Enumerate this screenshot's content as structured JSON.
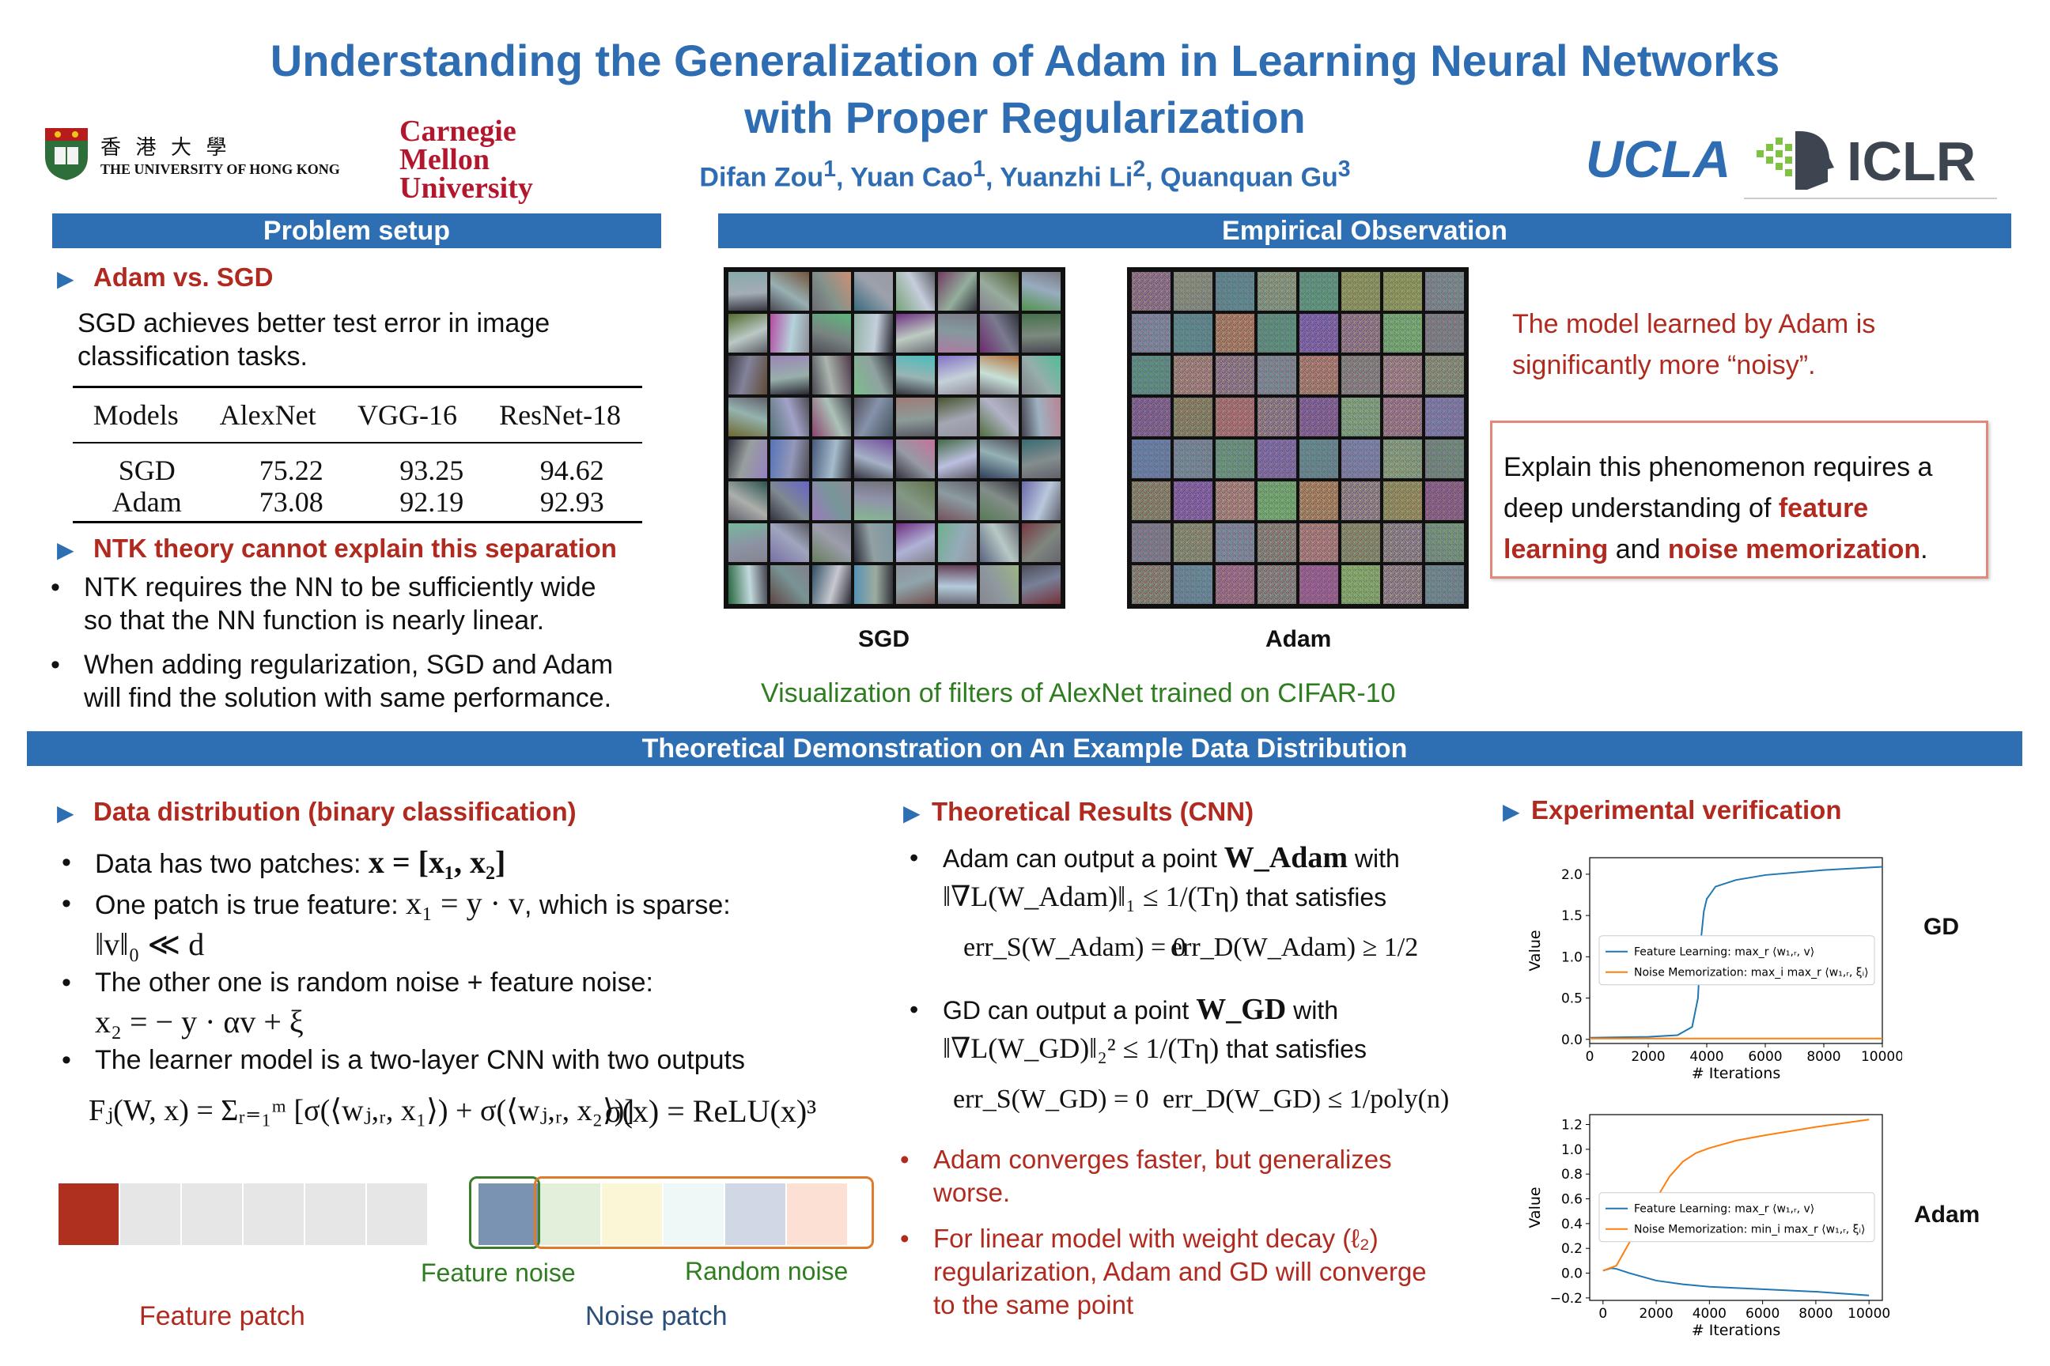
{
  "header": {
    "title_line1": "Understanding the Generalization of Adam in Learning Neural Networks",
    "title_line2": "with Proper Regularization",
    "authors": [
      {
        "name": "Difan Zou",
        "sup": "1"
      },
      {
        "name": "Yuan Cao",
        "sup": "1"
      },
      {
        "name": "Yuanzhi Li",
        "sup": "2"
      },
      {
        "name": "Quanquan Gu",
        "sup": "3"
      }
    ],
    "logos": {
      "hku_cn": "香 港 大 學",
      "hku_en": "THE UNIVERSITY OF HONG KONG",
      "cmu1": "Carnegie",
      "cmu2": "Mellon",
      "cmu3": "University",
      "ucla": "UCLA",
      "iclr": "ICLR"
    }
  },
  "problem": {
    "bar": "Problem setup",
    "h_adam_sgd": "Adam vs. SGD",
    "sgd_text_1": "SGD achieves better test error in image",
    "sgd_text_2": "classification tasks.",
    "table": {
      "headers": [
        "Models",
        "AlexNet",
        "VGG-16",
        "ResNet-18"
      ],
      "rows": [
        [
          "SGD",
          "75.22",
          "93.25",
          "94.62"
        ],
        [
          "Adam",
          "73.08",
          "92.19",
          "92.93"
        ]
      ]
    },
    "h_ntk": "NTK theory cannot explain this separation",
    "b1_1": "NTK requires the NN to be sufficiently wide",
    "b1_2": "so that the NN function is nearly linear.",
    "b2_1": "When adding regularization, SGD and Adam",
    "b2_2": "will find the solution with same performance."
  },
  "empirical": {
    "bar": "Empirical Observation",
    "sgd_label": "SGD",
    "adam_label": "Adam",
    "caption": "Visualization of filters of AlexNet trained on CIFAR-10",
    "noisy_1": "The model learned by Adam is",
    "noisy_2": "significantly more “noisy”.",
    "box_1": "Explain this phenomenon requires a",
    "box_2a": "deep understanding of ",
    "box_2b": "feature",
    "box_3a": "learning",
    "box_3b": " and ",
    "box_3c": "noise memorization",
    "box_3d": "."
  },
  "theory": {
    "bar": "Theoretical Demonstration on An Example Data Distribution",
    "h_data": "Data distribution (binary classification)",
    "d1": "Data has two patches: ",
    "d1_math": "x = [x₁, x₂]",
    "d2": "One patch is true feature: ",
    "d2_math": "x₁ = y · v",
    "d2_tail": ", which is sparse:",
    "d2_math2": "‖v‖₀ ≪ d",
    "d3": "The other one is random noise + feature noise:",
    "d3_math": "x₂ = − y · αv + ξ",
    "d4": "The learner model is a two-layer CNN with two outputs",
    "model_eq": "Fⱼ(W, x) = Σᵣ₌₁ᵐ [σ(⟨wⱼ,ᵣ, x₁⟩) + σ(⟨wⱼ,ᵣ, x₂⟩)]",
    "sigma_eq": "σ(x) = ReLU(x)³",
    "feature_noise": "Feature noise",
    "random_noise": "Random noise",
    "feature_patch": "Feature patch",
    "noise_patch": "Noise patch",
    "patch_colors": {
      "feature": "#b0301f",
      "gray": "#e6e6e6",
      "feature_noise": "#7a93b3",
      "noise": [
        "#e2efdb",
        "#fbf6d6",
        "#eef8f6",
        "#cfd8e4",
        "#fbe0d3"
      ]
    },
    "h_results": "Theoretical Results (CNN)",
    "r1_a": "Adam can output a point ",
    "r1_a_math": "W_Adam",
    "r1_a_tail": " with",
    "r1_b_math": "‖∇L(W_Adam)‖₁ ≤ 1/(Tη)",
    "r1_b_tail": " that satisfies",
    "r1_c_math1": "err_S(W_Adam) = 0",
    "r1_c_math2": "err_D(W_Adam) ≥ 1/2",
    "r2_a": "GD can output a point ",
    "r2_a_math": "W_GD",
    "r2_a_tail": " with",
    "r2_b_math": "‖∇L(W_GD)‖₂² ≤ 1/(Tη)",
    "r2_b_tail": " that satisfies",
    "r2_c_math1": "err_S(W_GD) = 0",
    "r2_c_math2": "err_D(W_GD) ≤ 1/poly(n)",
    "r3_1": "Adam converges faster, but generalizes",
    "r3_2": "worse.",
    "r4_1": "For linear model with weight decay (ℓ₂)",
    "r4_2": "regularization, Adam and GD will converge",
    "r4_3": "to the same point",
    "h_exp": "Experimental verification",
    "gd_label": "GD",
    "adam_label": "Adam"
  },
  "chart_data": [
    {
      "type": "line",
      "xlabel": "# Iterations",
      "ylabel": "Value",
      "xlim": [
        0,
        10000
      ],
      "ylim": [
        -0.05,
        2.2
      ],
      "xticks": [
        0,
        2000,
        4000,
        6000,
        8000,
        10000
      ],
      "yticks": [
        0.0,
        0.5,
        1.0,
        1.5,
        2.0
      ],
      "ytick_labels": [
        "0.0",
        "0.5",
        "1.0",
        "1.5",
        "2.0"
      ],
      "legend": "left-center",
      "series": [
        {
          "name": "Feature Learning: max_r ⟨w₁,ᵣ, v⟩",
          "color": "#1f77b4",
          "x": [
            0,
            2000,
            3000,
            3500,
            3700,
            3800,
            3900,
            4000,
            4300,
            5000,
            6000,
            8000,
            10000
          ],
          "y": [
            0.02,
            0.03,
            0.05,
            0.15,
            0.5,
            1.2,
            1.55,
            1.7,
            1.85,
            1.93,
            1.99,
            2.05,
            2.09
          ]
        },
        {
          "name": "Noise Memorization: max_i max_r ⟨w₁,ᵣ, ξᵢ⟩",
          "color": "#ff7f0e",
          "x": [
            0,
            2000,
            4000,
            6000,
            8000,
            10000
          ],
          "y": [
            0.01,
            0.01,
            0.01,
            0.01,
            0.01,
            0.01
          ]
        }
      ]
    },
    {
      "type": "line",
      "xlabel": "# Iterations",
      "ylabel": "Value",
      "xlim": [
        -500,
        10500
      ],
      "ylim": [
        -0.22,
        1.28
      ],
      "xticks": [
        0,
        2000,
        4000,
        6000,
        8000,
        10000
      ],
      "yticks": [
        -0.2,
        0.0,
        0.2,
        0.4,
        0.6,
        0.8,
        1.0,
        1.2
      ],
      "ytick_labels": [
        "−0.2",
        "0.0",
        "0.2",
        "0.4",
        "0.6",
        "0.8",
        "1.0",
        "1.2"
      ],
      "legend": "left-center",
      "series": [
        {
          "name": "Feature Learning: max_r ⟨w₁,ᵣ, v⟩",
          "color": "#1f77b4",
          "x": [
            0,
            300,
            500,
            1000,
            2000,
            3000,
            4000,
            6000,
            8000,
            10000
          ],
          "y": [
            0.02,
            0.04,
            0.035,
            0.0,
            -0.06,
            -0.09,
            -0.11,
            -0.13,
            -0.15,
            -0.18
          ]
        },
        {
          "name": "Noise Memorization: min_i max_r ⟨w₁,ᵣ, ξᵢ⟩",
          "color": "#ff7f0e",
          "x": [
            0,
            500,
            1000,
            2000,
            2500,
            3000,
            3500,
            4000,
            5000,
            6000,
            8000,
            10000
          ],
          "y": [
            0.02,
            0.06,
            0.25,
            0.6,
            0.78,
            0.9,
            0.97,
            1.01,
            1.07,
            1.11,
            1.18,
            1.24
          ]
        }
      ]
    }
  ]
}
